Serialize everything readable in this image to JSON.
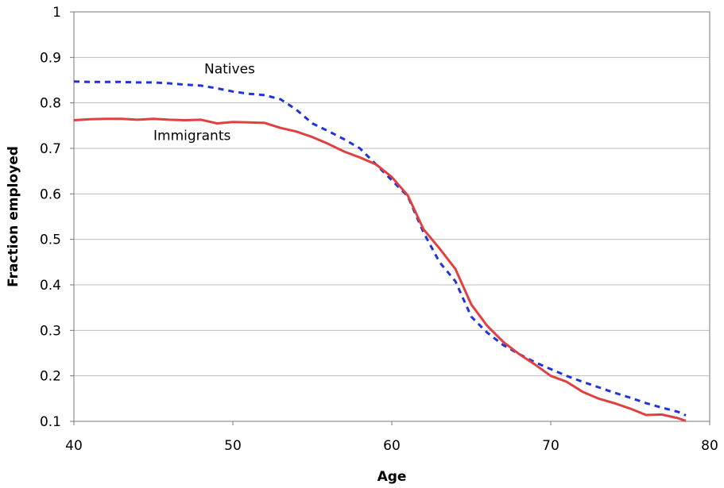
{
  "chart_data": {
    "type": "line",
    "xlabel": "Age",
    "ylabel": "Fraction employed",
    "xlim": [
      40,
      80
    ],
    "ylim": [
      0.1,
      1
    ],
    "xticks": [
      "40",
      "50",
      "60",
      "70",
      "80"
    ],
    "yticks": [
      "0.1",
      "0.2",
      "0.3",
      "0.4",
      "0.5",
      "0.6",
      "0.7",
      "0.8",
      "0.9",
      "1"
    ],
    "grid": "horizontal",
    "series": [
      {
        "name": "Natives",
        "style": "dashed",
        "color": "#2233dd",
        "x": [
          40,
          41,
          42,
          43,
          44,
          45,
          46,
          47,
          48,
          49,
          50,
          51,
          52,
          53,
          54,
          55,
          56,
          57,
          58,
          59,
          60,
          61,
          62,
          63,
          64,
          65,
          66,
          67,
          68,
          69,
          70,
          71,
          72,
          73,
          74,
          75,
          76,
          77,
          78,
          78.5
        ],
        "y": [
          0.847,
          0.846,
          0.846,
          0.846,
          0.845,
          0.845,
          0.843,
          0.84,
          0.838,
          0.832,
          0.825,
          0.82,
          0.817,
          0.808,
          0.785,
          0.755,
          0.738,
          0.72,
          0.7,
          0.665,
          0.63,
          0.595,
          0.515,
          0.45,
          0.408,
          0.33,
          0.295,
          0.268,
          0.248,
          0.23,
          0.215,
          0.2,
          0.187,
          0.175,
          0.163,
          0.152,
          0.14,
          0.13,
          0.121,
          0.113
        ]
      },
      {
        "name": "Immigrants",
        "style": "solid",
        "color": "#e04040",
        "x": [
          40,
          41,
          42,
          43,
          44,
          45,
          46,
          47,
          48,
          49,
          50,
          51,
          52,
          53,
          54,
          55,
          56,
          57,
          58,
          59,
          60,
          61,
          62,
          63,
          64,
          65,
          66,
          67,
          68,
          69,
          70,
          71,
          72,
          73,
          74,
          75,
          76,
          77,
          78,
          78.5
        ],
        "y": [
          0.762,
          0.764,
          0.765,
          0.765,
          0.763,
          0.765,
          0.763,
          0.762,
          0.763,
          0.755,
          0.758,
          0.757,
          0.756,
          0.745,
          0.737,
          0.725,
          0.71,
          0.693,
          0.68,
          0.665,
          0.637,
          0.597,
          0.522,
          0.48,
          0.435,
          0.357,
          0.31,
          0.275,
          0.248,
          0.225,
          0.2,
          0.187,
          0.165,
          0.15,
          0.14,
          0.128,
          0.114,
          0.115,
          0.107,
          0.101
        ]
      }
    ],
    "annotations": [
      {
        "text": "Natives",
        "x": 48.2,
        "y": 0.865
      },
      {
        "text": "Immigrants",
        "x": 45,
        "y": 0.718
      }
    ]
  }
}
